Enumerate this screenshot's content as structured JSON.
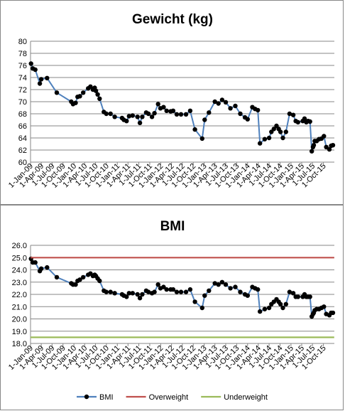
{
  "chart_data": [
    {
      "type": "line",
      "title": "Gewicht (kg)",
      "xlabel": "",
      "ylabel": "",
      "ylim": [
        60,
        80
      ],
      "ytick_step": 2,
      "ytick_decimals": 0,
      "grid": true,
      "x_tick_labels": [
        "1-Jan-09",
        "1-Apr-09",
        "1-Jul-09",
        "1-Oct-09",
        "1-Jan-10",
        "1-Apr-10",
        "1-Jul-10",
        "1-Oct-10",
        "1-Jan-11",
        "1-Apr-11",
        "1-Jul-11",
        "1-Oct-11",
        "1-Jan-12",
        "1-Apr-12",
        "1-Jul-12",
        "1-Oct-12",
        "1-Jan-13",
        "1-Apr-13",
        "1-Jul-13",
        "1-Oct-13",
        "1-Jan-14",
        "1-Apr-14",
        "1-Jul-14",
        "1-Oct-14",
        "1-Jan-15",
        "1-Apr-15",
        "1-Jul-15",
        "1-Oct-15"
      ],
      "series": [
        {
          "color": "#4f81bd",
          "marker": "circle",
          "x": [
            "2009-01-05",
            "2009-01-20",
            "2009-02-10",
            "2009-03-20",
            "2009-04-01",
            "2009-05-20",
            "2009-08-10",
            "2009-12-10",
            "2009-12-25",
            "2010-01-15",
            "2010-02-01",
            "2010-02-20",
            "2010-03-20",
            "2010-05-01",
            "2010-05-20",
            "2010-06-10",
            "2010-06-25",
            "2010-07-05",
            "2010-07-20",
            "2010-08-05",
            "2010-09-10",
            "2010-10-01",
            "2010-11-05",
            "2010-12-10",
            "2011-02-10",
            "2011-02-25",
            "2011-03-20",
            "2011-04-10",
            "2011-05-10",
            "2011-06-20",
            "2011-07-10",
            "2011-07-30",
            "2011-09-01",
            "2011-09-20",
            "2011-10-20",
            "2011-11-10",
            "2011-12-10",
            "2011-12-30",
            "2012-01-25",
            "2012-02-20",
            "2012-03-25",
            "2012-04-15",
            "2012-05-15",
            "2012-06-20",
            "2012-08-01",
            "2012-09-05",
            "2012-10-15",
            "2012-12-15",
            "2013-01-05",
            "2013-02-10",
            "2013-04-01",
            "2013-05-01",
            "2013-06-01",
            "2013-07-01",
            "2013-08-10",
            "2013-09-20",
            "2013-11-01",
            "2013-12-10",
            "2014-01-01",
            "2014-02-10",
            "2014-03-05",
            "2014-03-28",
            "2014-04-15",
            "2014-05-25",
            "2014-07-01",
            "2014-07-20",
            "2014-08-10",
            "2014-09-01",
            "2014-09-20",
            "2014-10-05",
            "2014-10-25",
            "2014-11-20",
            "2014-12-20",
            "2015-01-20",
            "2015-02-10",
            "2015-03-01",
            "2015-04-10",
            "2015-04-25",
            "2015-05-10",
            "2015-05-25",
            "2015-06-10",
            "2015-06-25",
            "2015-07-05",
            "2015-07-12",
            "2015-07-20",
            "2015-08-05",
            "2015-08-25",
            "2015-09-15",
            "2015-10-05",
            "2015-10-25",
            "2015-11-20",
            "2015-12-05",
            "2015-12-20"
          ],
          "y": [
            76.3,
            75.5,
            75.3,
            73.0,
            73.7,
            73.9,
            71.5,
            70.0,
            69.6,
            69.8,
            70.8,
            70.9,
            71.5,
            72.2,
            72.5,
            72.0,
            72.3,
            71.8,
            71.2,
            70.5,
            68.3,
            68.0,
            68.0,
            67.5,
            67.3,
            67.0,
            66.8,
            67.6,
            67.7,
            67.5,
            66.5,
            67.5,
            68.2,
            68.0,
            67.5,
            68.1,
            69.6,
            68.9,
            69.1,
            68.5,
            68.4,
            68.5,
            67.9,
            67.9,
            67.9,
            68.5,
            65.4,
            63.9,
            67.0,
            68.2,
            70.0,
            69.7,
            70.3,
            69.9,
            68.9,
            69.3,
            68.0,
            67.4,
            67.1,
            69.1,
            68.8,
            68.6,
            63.1,
            63.8,
            64.0,
            65.0,
            65.5,
            66.0,
            65.5,
            65.0,
            64.0,
            65.0,
            68.0,
            67.8,
            66.8,
            66.6,
            66.8,
            67.2,
            66.6,
            66.8,
            66.7,
            61.8,
            62.5,
            62.8,
            63.5,
            63.5,
            63.8,
            63.9,
            64.3,
            62.5,
            62.1,
            62.7,
            62.8
          ]
        }
      ]
    },
    {
      "type": "line",
      "title": "BMI",
      "xlabel": "",
      "ylabel": "",
      "ylim": [
        18,
        26
      ],
      "ytick_step": 1,
      "ytick_decimals": 1,
      "grid": true,
      "legend_position": "bottom",
      "x_tick_labels": [
        "1-Jan-09",
        "1-Apr-09",
        "1-Jul-09",
        "1-Oct-09",
        "1-Jan-10",
        "1-Apr-10",
        "1-Jul-10",
        "1-Oct-10",
        "1-Jan-11",
        "1-Apr-11",
        "1-Jul-11",
        "1-Oct-11",
        "1-Jan-12",
        "1-Apr-12",
        "1-Jul-12",
        "1-Oct-12",
        "1-Jan-13",
        "1-Apr-13",
        "1-Jul-13",
        "1-Oct-13",
        "1-Jan-14",
        "1-Apr-14",
        "1-Jul-14",
        "1-Oct-14",
        "1-Jan-15",
        "1-Apr-15",
        "1-Jul-15",
        "1-Oct-15"
      ],
      "series": [
        {
          "name": "BMI",
          "color": "#4f81bd",
          "marker": "circle",
          "x": [
            "2009-01-05",
            "2009-01-20",
            "2009-02-10",
            "2009-03-20",
            "2009-04-01",
            "2009-05-20",
            "2009-08-10",
            "2009-12-10",
            "2009-12-25",
            "2010-01-15",
            "2010-02-01",
            "2010-02-20",
            "2010-03-20",
            "2010-05-01",
            "2010-05-20",
            "2010-06-10",
            "2010-06-25",
            "2010-07-05",
            "2010-07-20",
            "2010-08-05",
            "2010-09-10",
            "2010-10-01",
            "2010-11-05",
            "2010-12-10",
            "2011-02-10",
            "2011-02-25",
            "2011-03-20",
            "2011-04-10",
            "2011-05-10",
            "2011-06-20",
            "2011-07-10",
            "2011-07-30",
            "2011-09-01",
            "2011-09-20",
            "2011-10-20",
            "2011-11-10",
            "2011-12-10",
            "2011-12-30",
            "2012-01-25",
            "2012-02-20",
            "2012-03-25",
            "2012-04-15",
            "2012-05-15",
            "2012-06-20",
            "2012-08-01",
            "2012-09-05",
            "2012-10-15",
            "2012-12-15",
            "2013-01-05",
            "2013-02-10",
            "2013-04-01",
            "2013-05-01",
            "2013-06-01",
            "2013-07-01",
            "2013-08-10",
            "2013-09-20",
            "2013-11-01",
            "2013-12-10",
            "2014-01-01",
            "2014-02-10",
            "2014-03-05",
            "2014-03-28",
            "2014-04-15",
            "2014-05-25",
            "2014-07-01",
            "2014-07-20",
            "2014-08-10",
            "2014-09-01",
            "2014-09-20",
            "2014-10-05",
            "2014-10-25",
            "2014-11-20",
            "2014-12-20",
            "2015-01-20",
            "2015-02-10",
            "2015-03-01",
            "2015-04-10",
            "2015-04-25",
            "2015-05-10",
            "2015-05-25",
            "2015-06-10",
            "2015-06-25",
            "2015-07-05",
            "2015-07-12",
            "2015-07-20",
            "2015-08-05",
            "2015-08-25",
            "2015-09-15",
            "2015-10-05",
            "2015-10-25",
            "2015-11-20",
            "2015-12-05",
            "2015-12-20"
          ],
          "y": [
            24.9,
            24.6,
            24.6,
            23.9,
            24.1,
            24.2,
            23.4,
            22.9,
            22.8,
            22.8,
            23.1,
            23.2,
            23.4,
            23.6,
            23.7,
            23.5,
            23.6,
            23.5,
            23.3,
            23.1,
            22.3,
            22.2,
            22.2,
            22.1,
            22.0,
            21.9,
            21.8,
            22.1,
            22.1,
            22.0,
            21.7,
            22.0,
            22.3,
            22.2,
            22.1,
            22.2,
            22.8,
            22.5,
            22.6,
            22.4,
            22.4,
            22.4,
            22.2,
            22.2,
            22.2,
            22.4,
            21.4,
            20.9,
            21.9,
            22.3,
            22.9,
            22.8,
            23.0,
            22.8,
            22.5,
            22.6,
            22.2,
            22.0,
            21.9,
            22.6,
            22.5,
            22.4,
            20.6,
            20.8,
            20.9,
            21.2,
            21.4,
            21.6,
            21.4,
            21.2,
            20.9,
            21.2,
            22.2,
            22.1,
            21.8,
            21.8,
            21.8,
            22.0,
            21.8,
            21.8,
            21.8,
            20.2,
            20.4,
            20.5,
            20.7,
            20.8,
            20.8,
            20.9,
            21.0,
            20.4,
            20.3,
            20.5,
            20.5
          ]
        },
        {
          "name": "Overweight",
          "color": "#c0504d",
          "marker": "none",
          "x": [
            "2009-01-01",
            "2015-12-31"
          ],
          "y": [
            25.0,
            25.0
          ]
        },
        {
          "name": "Underweight",
          "color": "#9bbb59",
          "marker": "none",
          "x": [
            "2009-01-01",
            "2015-12-31"
          ],
          "y": [
            18.5,
            18.5
          ]
        }
      ]
    }
  ]
}
